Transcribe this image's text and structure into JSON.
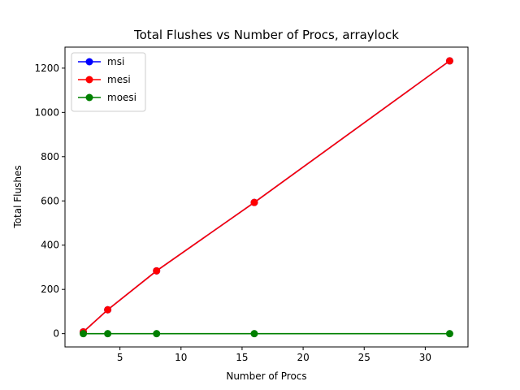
{
  "chart_data": {
    "type": "line",
    "title": "Total Flushes vs Number of Procs, arraylock",
    "xlabel": "Number of Procs",
    "ylabel": "Total Flushes",
    "xlim": [
      0.5,
      33.5
    ],
    "ylim": [
      -60,
      1295
    ],
    "xticks": [
      5,
      10,
      15,
      20,
      25,
      30
    ],
    "yticks": [
      0,
      200,
      400,
      600,
      800,
      1000,
      1200
    ],
    "grid": false,
    "legend_position": "top-left",
    "series": [
      {
        "name": "msi",
        "color": "#0000ff",
        "x": [
          2,
          4,
          8,
          16,
          32
        ],
        "y": [
          8,
          108,
          284,
          593,
          1233
        ]
      },
      {
        "name": "mesi",
        "color": "#ff0000",
        "x": [
          2,
          4,
          8,
          16,
          32
        ],
        "y": [
          8,
          108,
          284,
          593,
          1233
        ]
      },
      {
        "name": "moesi",
        "color": "#008000",
        "x": [
          2,
          4,
          8,
          16,
          32
        ],
        "y": [
          0,
          0,
          0,
          0,
          0
        ]
      }
    ]
  }
}
